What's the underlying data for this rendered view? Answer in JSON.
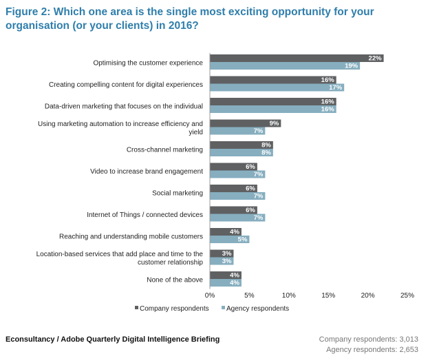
{
  "title": "Figure 2: Which one area is the single most exciting opportunity for your organisation (or your clients) in 2016?",
  "source": "Econsultancy / Adobe Quarterly Digital Intelligence Briefing",
  "respondent_counts": {
    "company": "Company respondents: 3,013",
    "agency": "Agency respondents: 2,653"
  },
  "colors": {
    "company": "#5f6062",
    "agency": "#86aebf"
  },
  "chart_data": {
    "type": "bar",
    "orientation": "horizontal",
    "categories": [
      "Optimising the customer experience",
      "Creating compelling content for digital experiences",
      "Data-driven marketing that focuses on the individual",
      "Using marketing automation to increase efficiency and yield",
      "Cross-channel marketing",
      "Video to increase brand engagement",
      "Social marketing",
      "Internet of Things / connected devices",
      "Reaching and understanding mobile customers",
      "Location-based services that add place and time to the customer relationship",
      "None of the above"
    ],
    "series": [
      {
        "name": "Company respondents",
        "values": [
          22,
          16,
          16,
          9,
          8,
          6,
          6,
          6,
          4,
          3,
          4
        ]
      },
      {
        "name": "Agency respondents",
        "values": [
          19,
          17,
          16,
          7,
          8,
          7,
          7,
          7,
          5,
          3,
          4
        ]
      }
    ],
    "xlim": [
      0,
      25
    ],
    "xticks": [
      "0%",
      "5%",
      "10%",
      "15%",
      "20%",
      "25%"
    ],
    "value_suffix": "%",
    "legend_position": "bottom-center",
    "grid": false
  }
}
